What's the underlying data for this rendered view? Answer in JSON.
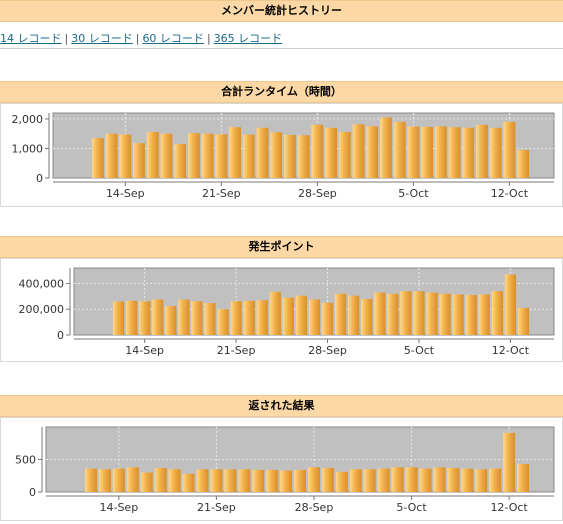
{
  "page": {
    "title": "メンバー統計ヒストリー",
    "range_links": [
      {
        "label": "14 レコード"
      },
      {
        "label": "30 レコード"
      },
      {
        "label": "60 レコード"
      },
      {
        "label": "365 レコード"
      }
    ],
    "separator": "|"
  },
  "chart_data": [
    {
      "type": "bar",
      "title": "合計ランタイム（時間）",
      "ylim": [
        0,
        2200
      ],
      "yticks": [
        0,
        1000,
        2000
      ],
      "ytick_labels": [
        "0",
        "1,000",
        "2,000"
      ],
      "x_tick_labels": [
        "14-Sep",
        "21-Sep",
        "28-Sep",
        "5-Oct",
        "12-Oct"
      ],
      "x_tick_index": [
        2,
        9,
        16,
        23,
        30
      ],
      "values": [
        1350,
        1500,
        1470,
        1180,
        1560,
        1500,
        1150,
        1520,
        1500,
        1480,
        1720,
        1470,
        1700,
        1550,
        1460,
        1450,
        1800,
        1700,
        1560,
        1820,
        1750,
        2050,
        1900,
        1740,
        1730,
        1750,
        1720,
        1700,
        1800,
        1700,
        1900,
        950
      ],
      "bar_color": "#f2b04a",
      "plot_bg": "#c0c0c0"
    },
    {
      "type": "bar",
      "title": "発生ポイント",
      "ylim": [
        0,
        520000
      ],
      "yticks": [
        0,
        200000,
        400000
      ],
      "ytick_labels": [
        "0",
        "200,000",
        "400,000"
      ],
      "x_tick_labels": [
        "14-Sep",
        "21-Sep",
        "28-Sep",
        "5-Oct",
        "12-Oct"
      ],
      "x_tick_index": [
        2,
        9,
        16,
        23,
        30
      ],
      "values": [
        260000,
        265000,
        262000,
        275000,
        225000,
        275000,
        262000,
        248000,
        200000,
        262000,
        265000,
        270000,
        335000,
        290000,
        305000,
        275000,
        250000,
        320000,
        305000,
        280000,
        330000,
        320000,
        340000,
        340000,
        330000,
        320000,
        315000,
        310000,
        315000,
        340000,
        470000,
        210000
      ],
      "bar_color": "#f2b04a",
      "plot_bg": "#c0c0c0"
    },
    {
      "type": "bar",
      "title": "返された結果",
      "ylim": [
        0,
        1000
      ],
      "yticks": [
        0,
        500
      ],
      "ytick_labels": [
        "0",
        "500"
      ],
      "x_tick_labels": [
        "14-Sep",
        "21-Sep",
        "28-Sep",
        "5-Oct",
        "12-Oct"
      ],
      "x_tick_index": [
        2,
        9,
        16,
        23,
        30
      ],
      "values": [
        360,
        350,
        360,
        380,
        300,
        370,
        350,
        280,
        350,
        350,
        350,
        350,
        340,
        340,
        330,
        340,
        380,
        370,
        310,
        350,
        350,
        360,
        380,
        380,
        360,
        380,
        370,
        360,
        350,
        360,
        910,
        430
      ],
      "bar_color": "#f2b04a",
      "plot_bg": "#c0c0c0"
    }
  ]
}
